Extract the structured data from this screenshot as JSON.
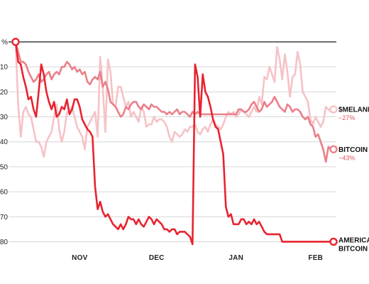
{
  "chart_data": {
    "type": "line",
    "title": "",
    "xlabel": "",
    "ylabel": "",
    "ylim": [
      -83,
      0
    ],
    "y_ticks": [
      {
        "value": 0,
        "label": "%"
      },
      {
        "value": -10,
        "label": "10"
      },
      {
        "value": -20,
        "label": "20"
      },
      {
        "value": -30,
        "label": "30"
      },
      {
        "value": -40,
        "label": "40"
      },
      {
        "value": -50,
        "label": "50"
      },
      {
        "value": -60,
        "label": "60"
      },
      {
        "value": -70,
        "label": "70"
      },
      {
        "value": -80,
        "label": "80"
      }
    ],
    "x_ticks": [
      {
        "value": 25,
        "label": "NOV"
      },
      {
        "value": 55,
        "label": "DEC"
      },
      {
        "value": 86,
        "label": "JAN"
      },
      {
        "value": 117,
        "label": "FEB"
      }
    ],
    "xlim": [
      0,
      124
    ],
    "grid": true,
    "series": [
      {
        "key": "melania",
        "name": "$MELANIA",
        "change_label": "−27%",
        "color": "#f6c2c6",
        "x": [
          0,
          1,
          2,
          3,
          4,
          5,
          6,
          7,
          8,
          9,
          10,
          11,
          12,
          13,
          14,
          15,
          16,
          17,
          18,
          19,
          20,
          21,
          22,
          23,
          24,
          25,
          26,
          27,
          28,
          29,
          30,
          31,
          32,
          33,
          34,
          35,
          36,
          37,
          38,
          39,
          40,
          41,
          42,
          43,
          44,
          45,
          46,
          47,
          48,
          49,
          50,
          51,
          52,
          53,
          54,
          55,
          56,
          57,
          58,
          59,
          60,
          61,
          62,
          63,
          64,
          65,
          66,
          67,
          68,
          69,
          70,
          71,
          72,
          73,
          74,
          75,
          76,
          77,
          78,
          79,
          80,
          81,
          82,
          83,
          84,
          85,
          86,
          87,
          88,
          89,
          90,
          91,
          92,
          93,
          94,
          95,
          96,
          97,
          98,
          99,
          100,
          101,
          102,
          103,
          104,
          105,
          106,
          107,
          108,
          109,
          110,
          111,
          112,
          113,
          114,
          115,
          116,
          117,
          118,
          119,
          120,
          121,
          122,
          123,
          124
        ],
        "values": [
          0,
          -25,
          -38,
          -28,
          -26,
          -29,
          -30,
          -35,
          -40,
          -40,
          -42,
          -46,
          -40,
          -38,
          -36,
          -30,
          -25,
          -35,
          -40,
          -36,
          -28,
          -28,
          -26,
          -30,
          -34,
          -36,
          -38,
          -43,
          -34,
          -32,
          -30,
          -28,
          -38,
          -6,
          -18,
          -36,
          -7,
          -12,
          -25,
          -26,
          -18,
          -18,
          -22,
          -26,
          -24,
          -30,
          -28,
          -30,
          -32,
          -26,
          -28,
          -34,
          -33,
          -33,
          -30,
          -32,
          -31,
          -31,
          -32,
          -34,
          -38,
          -40,
          -36,
          -37,
          -38,
          -37,
          -35,
          -36,
          -34,
          -34,
          -33,
          -36,
          -37,
          -35,
          -34,
          -36,
          -33,
          -31,
          -33,
          -34,
          -35,
          -33,
          -30,
          -28,
          -29,
          -28,
          -30,
          -29,
          -27,
          -28,
          -29,
          -30,
          -28,
          -26,
          -28,
          -22,
          -25,
          -14,
          -15,
          -10,
          -13,
          -16,
          -2,
          -7,
          -15,
          -5,
          -12,
          -22,
          -14,
          -13,
          -4,
          -9,
          -20,
          -22,
          -24,
          -31,
          -33,
          -30,
          -32,
          -34,
          -32,
          -26,
          -27,
          -28,
          -27
        ]
      },
      {
        "key": "bitcoin",
        "name": "BITCOIN",
        "change_label": "−43%",
        "color": "#ea7f89",
        "x": [
          0,
          1,
          2,
          3,
          4,
          5,
          6,
          7,
          8,
          9,
          10,
          11,
          12,
          13,
          14,
          15,
          16,
          17,
          18,
          19,
          20,
          21,
          22,
          23,
          24,
          25,
          26,
          27,
          28,
          29,
          30,
          31,
          32,
          33,
          34,
          35,
          36,
          37,
          38,
          39,
          40,
          41,
          42,
          43,
          44,
          45,
          46,
          47,
          48,
          49,
          50,
          51,
          52,
          53,
          54,
          55,
          56,
          57,
          58,
          59,
          60,
          61,
          62,
          63,
          64,
          65,
          66,
          67,
          68,
          69,
          70,
          71,
          72,
          73,
          74,
          75,
          76,
          77,
          78,
          79,
          80,
          81,
          82,
          83,
          84,
          85,
          86,
          87,
          88,
          89,
          90,
          91,
          92,
          93,
          94,
          95,
          96,
          97,
          98,
          99,
          100,
          101,
          102,
          103,
          104,
          105,
          106,
          107,
          108,
          109,
          110,
          111,
          112,
          113,
          114,
          115,
          116,
          117,
          118,
          119,
          120,
          121,
          122,
          123,
          124
        ],
        "values": [
          0,
          -4,
          -8,
          -8,
          -9,
          -12,
          -14,
          -16,
          -15,
          -13,
          -16,
          -15,
          -13,
          -12,
          -15,
          -13,
          -12,
          -13,
          -10,
          -10,
          -8,
          -9,
          -11,
          -10,
          -12,
          -11,
          -13,
          -12,
          -16,
          -17,
          -15,
          -14,
          -15,
          -12,
          -18,
          -16,
          -19,
          -24,
          -25,
          -26,
          -28,
          -30,
          -29,
          -26,
          -27,
          -25,
          -24,
          -24,
          -26,
          -27,
          -25,
          -26,
          -27,
          -25,
          -26,
          -26,
          -27,
          -28,
          -28,
          -29,
          -28,
          -29,
          -28,
          -27,
          -29,
          -28,
          -28,
          -29,
          -30,
          -28,
          -29,
          -28,
          -29,
          -29,
          -29,
          -29,
          -29,
          -29,
          -29,
          -29,
          -29,
          -29,
          -29,
          -29,
          -29,
          -29,
          -29,
          -27,
          -27,
          -28,
          -28,
          -27,
          -25,
          -24,
          -26,
          -28,
          -27,
          -24,
          -26,
          -25,
          -24,
          -22,
          -24,
          -26,
          -27,
          -28,
          -25,
          -26,
          -28,
          -27,
          -27,
          -28,
          -30,
          -31,
          -30,
          -33,
          -34,
          -38,
          -37,
          -40,
          -43,
          -48,
          -42,
          -43,
          -43
        ]
      },
      {
        "key": "american_bitcoin",
        "name": "AMERICAN BITCOIN",
        "name_lines": [
          "AMERICA",
          "BITCOIN"
        ],
        "change_label": "",
        "color": "#e8232f",
        "x": [
          0,
          1,
          2,
          3,
          4,
          5,
          6,
          7,
          8,
          9,
          10,
          11,
          12,
          13,
          14,
          15,
          16,
          17,
          18,
          19,
          20,
          21,
          22,
          23,
          24,
          25,
          26,
          27,
          28,
          29,
          30,
          31,
          32,
          33,
          34,
          35,
          36,
          37,
          38,
          39,
          40,
          41,
          42,
          43,
          44,
          45,
          46,
          47,
          48,
          49,
          50,
          51,
          52,
          53,
          54,
          55,
          56,
          57,
          58,
          59,
          60,
          61,
          62,
          63,
          64,
          65,
          66,
          67,
          68,
          69,
          70,
          71,
          72,
          73,
          74,
          75,
          76,
          77,
          78,
          79,
          80,
          81,
          82,
          83,
          84,
          85,
          86,
          87,
          88,
          89,
          90,
          91,
          92,
          93,
          94,
          95,
          96,
          97,
          98,
          99,
          100,
          101,
          102,
          103,
          104,
          105,
          106,
          107,
          108,
          109,
          110,
          111,
          112,
          113,
          114,
          115,
          116,
          117,
          118,
          119,
          120,
          121,
          122,
          123,
          124
        ],
        "values": [
          0,
          -8,
          -9,
          -14,
          -18,
          -23,
          -22,
          -27,
          -30,
          -20,
          -9,
          -13,
          -20,
          -24,
          -27,
          -24,
          -30,
          -29,
          -26,
          -27,
          -23,
          -29,
          -27,
          -23,
          -23,
          -26,
          -31,
          -33,
          -35,
          -36,
          -38,
          -58,
          -67,
          -64,
          -68,
          -70,
          -69,
          -71,
          -73,
          -74,
          -75,
          -73,
          -75,
          -73,
          -70,
          -71,
          -71,
          -73,
          -71,
          -73,
          -74,
          -72,
          -70,
          -71,
          -73,
          -71,
          -72,
          -73,
          -75,
          -75,
          -76,
          -75,
          -75,
          -77,
          -76,
          -76,
          -76,
          -77,
          -78,
          -81,
          -9,
          -14,
          -30,
          -13,
          -20,
          -22,
          -26,
          -31,
          -34,
          -35,
          -40,
          -45,
          -66,
          -70,
          -69,
          -73,
          -73,
          -73,
          -71,
          -71,
          -73,
          -72,
          -73,
          -71,
          -73,
          -72,
          -74,
          -76,
          -77,
          -77,
          -77,
          -77,
          -77,
          -77,
          -80,
          -80,
          -80,
          -80,
          -80,
          -80,
          -80,
          -80,
          -80,
          -80,
          -80,
          -80,
          -80,
          -80,
          -80,
          -80,
          -80,
          -80,
          -80,
          -80,
          -80
        ]
      }
    ]
  }
}
